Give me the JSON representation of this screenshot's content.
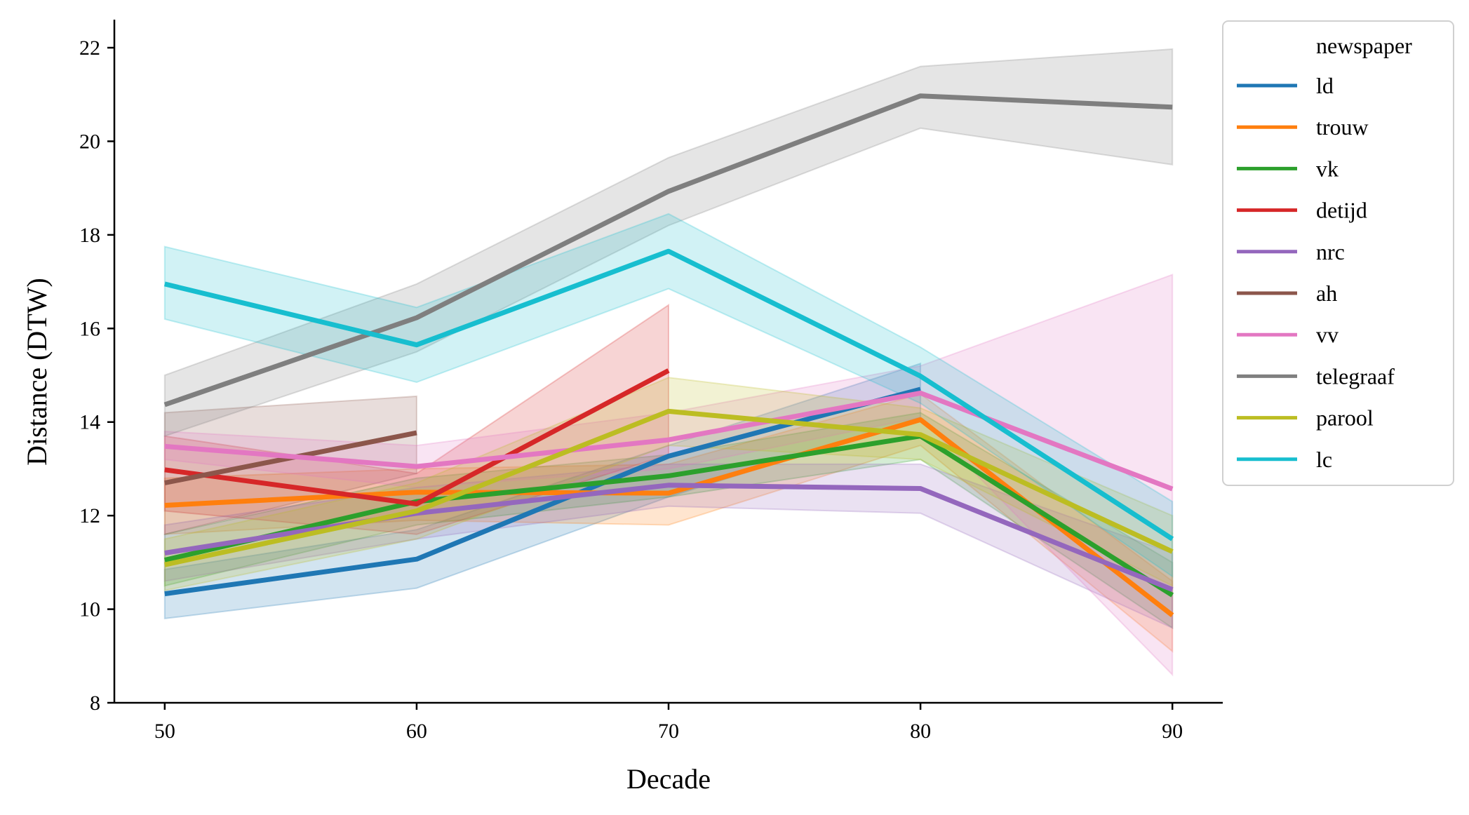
{
  "chart_data": {
    "type": "line",
    "title": "",
    "xlabel": "Decade",
    "ylabel": "Distance (DTW)",
    "x": [
      50,
      60,
      70,
      80,
      90
    ],
    "xlim": [
      48,
      92
    ],
    "ylim": [
      8,
      22.6
    ],
    "xticks": [
      "50",
      "60",
      "70",
      "80",
      "90"
    ],
    "yticks": [
      "8",
      "10",
      "12",
      "14",
      "16",
      "18",
      "20",
      "22"
    ],
    "legend_title": "newspaper",
    "legend_position": "upper-right-outside",
    "series": [
      {
        "name": "ld",
        "color": "#1f77b4",
        "x": [
          50,
          60,
          70,
          80
        ],
        "values": [
          10.33,
          11.07,
          13.27,
          14.7
        ],
        "lower": [
          9.8,
          10.45,
          12.4,
          14.1
        ],
        "upper": [
          10.85,
          11.7,
          13.5,
          15.25
        ]
      },
      {
        "name": "trouw",
        "color": "#ff7f0e",
        "x": [
          50,
          60,
          70,
          80,
          90
        ],
        "values": [
          12.22,
          12.5,
          12.48,
          14.05,
          9.87
        ],
        "lower": [
          11.6,
          11.9,
          11.8,
          13.5,
          9.1
        ],
        "upper": [
          12.8,
          13.0,
          13.1,
          14.6,
          10.6
        ]
      },
      {
        "name": "vk",
        "color": "#2ca02c",
        "x": [
          50,
          60,
          70,
          80,
          90
        ],
        "values": [
          11.05,
          12.3,
          12.85,
          13.7,
          10.3
        ],
        "lower": [
          10.5,
          11.8,
          12.4,
          13.2,
          9.6
        ],
        "upper": [
          11.6,
          12.8,
          13.3,
          14.2,
          11.0
        ]
      },
      {
        "name": "detijd",
        "color": "#d62728",
        "x": [
          50,
          60,
          70
        ],
        "values": [
          12.98,
          12.25,
          15.1
        ],
        "lower": [
          12.1,
          11.6,
          13.3
        ],
        "upper": [
          13.7,
          12.9,
          16.5
        ]
      },
      {
        "name": "nrc",
        "color": "#9467bd",
        "x": [
          50,
          60,
          70,
          80,
          90
        ],
        "values": [
          11.2,
          12.05,
          12.65,
          12.58,
          10.42
        ],
        "lower": [
          10.6,
          11.5,
          12.2,
          12.05,
          9.6
        ],
        "upper": [
          11.8,
          12.6,
          13.1,
          13.1,
          11.2
        ]
      },
      {
        "name": "ah",
        "color": "#8c564b",
        "x": [
          50,
          60
        ],
        "values": [
          12.7,
          13.77
        ],
        "lower": [
          11.6,
          12.9
        ],
        "upper": [
          14.2,
          14.55
        ]
      },
      {
        "name": "vv",
        "color": "#e377c2",
        "x": [
          50,
          60,
          70,
          80,
          90
        ],
        "values": [
          13.48,
          13.05,
          13.62,
          14.62,
          12.57
        ],
        "lower": [
          13.2,
          12.6,
          13.0,
          14.1,
          8.6
        ],
        "upper": [
          13.8,
          13.5,
          14.2,
          15.2,
          17.15
        ]
      },
      {
        "name": "telegraaf",
        "color": "#7f7f7f",
        "x": [
          50,
          60,
          70,
          80,
          90
        ],
        "values": [
          14.37,
          16.23,
          18.93,
          20.97,
          20.73
        ],
        "lower": [
          13.7,
          15.5,
          18.2,
          20.28,
          19.5
        ],
        "upper": [
          15.0,
          16.95,
          19.65,
          21.6,
          21.97
        ]
      },
      {
        "name": "parool",
        "color": "#bcbd22",
        "x": [
          50,
          60,
          70,
          80,
          90
        ],
        "values": [
          10.95,
          12.1,
          14.23,
          13.73,
          11.23
        ],
        "lower": [
          10.4,
          11.5,
          13.5,
          13.2,
          10.5
        ],
        "upper": [
          11.5,
          12.7,
          14.95,
          14.3,
          12.0
        ]
      },
      {
        "name": "lc",
        "color": "#17becf",
        "x": [
          50,
          60,
          70,
          80,
          90
        ],
        "values": [
          16.95,
          15.65,
          17.65,
          14.98,
          11.5
        ],
        "lower": [
          16.2,
          14.85,
          16.85,
          14.4,
          10.7
        ],
        "upper": [
          17.75,
          16.45,
          18.45,
          15.6,
          12.3
        ]
      }
    ]
  }
}
